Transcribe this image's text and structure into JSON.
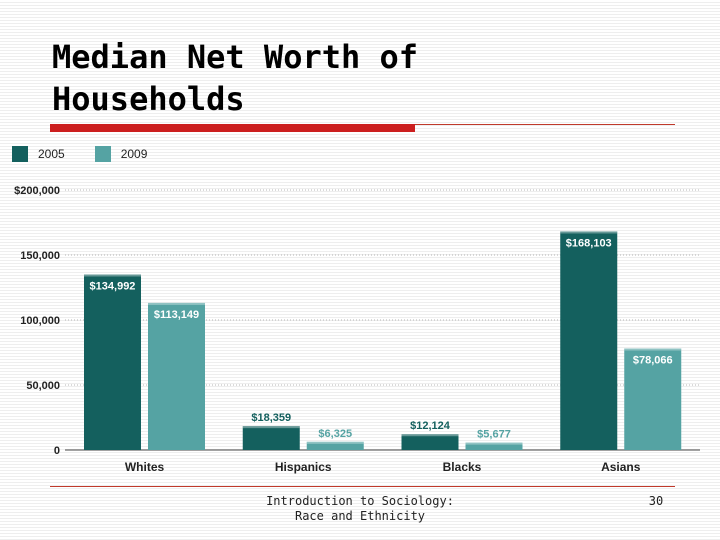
{
  "slide": {
    "title": "Median Net Worth of Households",
    "footer": "Introduction to Sociology: Race and Ethnicity",
    "page_number": "30",
    "accent_color": "#cc1f1f"
  },
  "chart_data": {
    "type": "bar",
    "title": "",
    "xlabel": "",
    "ylabel": "",
    "categories": [
      "Whites",
      "Hispanics",
      "Blacks",
      "Asians"
    ],
    "series": [
      {
        "name": "2005",
        "color": "#14605e",
        "values": [
          134992,
          18359,
          12124,
          168103
        ],
        "labels": [
          "$134,992",
          "$18,359",
          "$12,124",
          "$168,103"
        ]
      },
      {
        "name": "2009",
        "color": "#55a3a3",
        "values": [
          113149,
          6325,
          5677,
          78066
        ],
        "labels": [
          "$113,149",
          "$6,325",
          "$5,677",
          "$78,066"
        ]
      }
    ],
    "ylim": [
      0,
      200000
    ],
    "yticks": [
      0,
      50000,
      100000,
      150000,
      200000
    ],
    "ytick_labels": [
      "0",
      "50,000",
      "100,000",
      "150,000",
      "$200,000"
    ],
    "grid": true,
    "legend_position": "top-left"
  }
}
